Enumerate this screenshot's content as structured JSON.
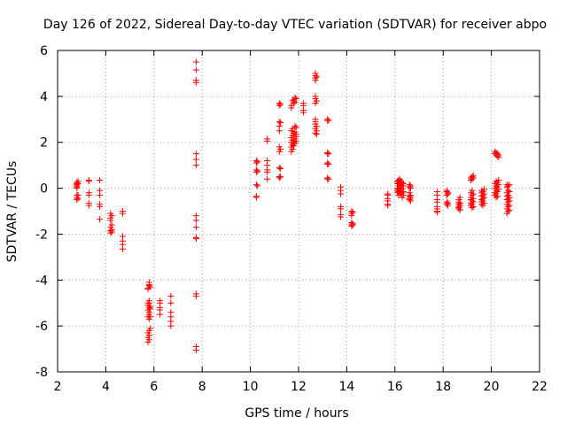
{
  "chart_data": {
    "type": "scatter",
    "title": "Day 126 of 2022, Sidereal Day-to-day VTEC variation (SDTVAR) for receiver abpo",
    "xlabel": "GPS time / hours",
    "ylabel": "SDTVAR / TECUs",
    "xlim": [
      2,
      22
    ],
    "ylim": [
      -8,
      6
    ],
    "xticks": [
      2,
      4,
      6,
      8,
      10,
      12,
      14,
      16,
      18,
      20,
      22
    ],
    "yticks": [
      -8,
      -6,
      -4,
      -2,
      0,
      2,
      4,
      6
    ],
    "grid": true,
    "marker": "plus",
    "color": "#ff0000",
    "series": [
      {
        "name": "SDTVAR",
        "clusters": [
          {
            "x": 2.8,
            "y": [
              0.25,
              0.2,
              0.15,
              0.1,
              0.05,
              0.0,
              -0.3,
              -0.4,
              -0.5
            ]
          },
          {
            "x": 2.85,
            "y": [
              0.3,
              0.2,
              -0.3,
              -0.45
            ]
          },
          {
            "x": 3.3,
            "y": [
              0.35,
              0.3,
              -0.2,
              -0.3,
              -0.65,
              -0.75
            ]
          },
          {
            "x": 3.75,
            "y": [
              0.35,
              -0.1,
              -0.3,
              -0.7,
              -0.8,
              -1.35
            ]
          },
          {
            "x": 4.2,
            "y": [
              -1.1,
              -1.3,
              -1.4,
              -1.7,
              -1.85,
              -1.95
            ]
          },
          {
            "x": 4.25,
            "y": [
              -1.2,
              -1.6,
              -1.8,
              -1.9
            ]
          },
          {
            "x": 4.7,
            "y": [
              -1.0,
              -1.1,
              -2.1,
              -2.3,
              -2.45,
              -2.65
            ]
          },
          {
            "x": 5.75,
            "y": [
              -4.4,
              -4.35,
              -5.0,
              -5.1,
              -5.3,
              -5.6,
              -6.3,
              -6.5,
              -6.7
            ]
          },
          {
            "x": 5.8,
            "y": [
              -4.1,
              -4.2,
              -4.25,
              -4.9,
              -5.0,
              -5.2,
              -5.4,
              -5.5,
              -5.7,
              -6.2,
              -6.4,
              -6.6
            ]
          },
          {
            "x": 5.85,
            "y": [
              -4.3,
              -5.15,
              -5.25,
              -5.6,
              -6.1
            ]
          },
          {
            "x": 6.25,
            "y": [
              -4.9,
              -5.0,
              -5.2,
              -5.3,
              -5.5
            ]
          },
          {
            "x": 6.7,
            "y": [
              -4.7,
              -5.0,
              -5.4,
              -5.6,
              -5.8,
              -6.0
            ]
          },
          {
            "x": 7.75,
            "y": [
              5.5,
              5.15,
              4.7,
              4.6,
              1.5,
              1.25,
              1.0,
              -1.2,
              -1.4,
              -1.7,
              -2.15,
              -2.2,
              -4.6,
              -4.7,
              -6.9,
              -7.05
            ]
          },
          {
            "x": 10.25,
            "y": [
              1.2,
              1.1,
              0.8,
              0.7,
              0.15,
              -0.35,
              -0.4
            ]
          },
          {
            "x": 10.3,
            "y": [
              1.15,
              0.75,
              0.1
            ]
          },
          {
            "x": 10.7,
            "y": [
              2.15,
              2.05,
              1.2,
              1.0,
              0.8,
              0.7,
              0.4
            ]
          },
          {
            "x": 11.2,
            "y": [
              3.7,
              3.6,
              2.9,
              2.7,
              2.5,
              1.8,
              1.6,
              0.9,
              0.5,
              0.45
            ]
          },
          {
            "x": 11.25,
            "y": [
              3.65,
              2.85,
              1.7,
              0.85,
              0.5
            ]
          },
          {
            "x": 11.7,
            "y": [
              3.6,
              3.5,
              2.5,
              2.2,
              2.0,
              1.8,
              1.6
            ]
          },
          {
            "x": 11.75,
            "y": [
              3.8,
              2.6,
              2.3,
              2.1,
              1.9,
              1.7
            ]
          },
          {
            "x": 11.8,
            "y": [
              3.85,
              3.7,
              2.4,
              2.0,
              1.85
            ]
          },
          {
            "x": 11.85,
            "y": [
              3.95,
              3.75,
              2.7,
              2.45,
              2.15,
              1.95
            ]
          },
          {
            "x": 11.9,
            "y": [
              3.9,
              2.65,
              2.35,
              2.25,
              2.05
            ]
          },
          {
            "x": 12.2,
            "y": [
              3.7,
              3.6,
              3.4,
              3.3
            ]
          },
          {
            "x": 12.7,
            "y": [
              5.0,
              4.9,
              4.8,
              4.7,
              4.0,
              3.9,
              3.7,
              3.0,
              2.9,
              2.8,
              2.6,
              2.4
            ]
          },
          {
            "x": 12.75,
            "y": [
              4.85,
              3.8,
              2.7,
              2.5,
              2.35
            ]
          },
          {
            "x": 13.2,
            "y": [
              3.0,
              2.95,
              1.55,
              1.5,
              1.1,
              1.05,
              0.45,
              0.4
            ]
          },
          {
            "x": 13.25,
            "y": [
              2.95,
              1.5,
              1.05,
              0.4
            ]
          },
          {
            "x": 13.75,
            "y": [
              0.05,
              -0.1,
              -0.25,
              -0.8,
              -0.9,
              -1.15,
              -1.25
            ]
          },
          {
            "x": 14.2,
            "y": [
              -1.0,
              -1.1,
              -1.2,
              -1.5,
              -1.6,
              -1.65
            ]
          },
          {
            "x": 14.25,
            "y": [
              -1.05,
              -1.55,
              -1.6
            ]
          },
          {
            "x": 15.7,
            "y": [
              -0.25,
              -0.3,
              -0.45,
              -0.55,
              -0.7,
              -0.75
            ]
          },
          {
            "x": 16.1,
            "y": [
              0.3,
              0.2,
              0.0,
              -0.1,
              -0.2
            ]
          },
          {
            "x": 16.15,
            "y": [
              0.35,
              0.25,
              0.1,
              -0.05,
              -0.15,
              -0.3
            ]
          },
          {
            "x": 16.2,
            "y": [
              0.4,
              0.2,
              0.05,
              -0.1,
              -0.2
            ]
          },
          {
            "x": 16.25,
            "y": [
              0.3,
              0.15,
              0.0,
              -0.25
            ]
          },
          {
            "x": 16.3,
            "y": [
              0.25,
              0.1,
              -0.05,
              -0.2,
              -0.4
            ]
          },
          {
            "x": 16.35,
            "y": [
              0.2,
              0.1,
              -0.15,
              -0.3
            ]
          },
          {
            "x": 16.6,
            "y": [
              0.15,
              0.05,
              -0.2,
              -0.35,
              -0.45,
              -0.5
            ]
          },
          {
            "x": 16.65,
            "y": [
              0.1,
              0.0,
              -0.3,
              -0.4,
              -0.55
            ]
          },
          {
            "x": 17.75,
            "y": [
              -0.15,
              -0.3,
              -0.5,
              -0.6,
              -0.8,
              -0.9,
              -1.0,
              -1.05
            ]
          },
          {
            "x": 18.15,
            "y": [
              -0.1,
              -0.15,
              -0.3,
              -0.6,
              -0.7
            ]
          },
          {
            "x": 18.2,
            "y": [
              -0.2,
              -0.25,
              -0.65,
              -0.75
            ]
          },
          {
            "x": 18.65,
            "y": [
              -0.5,
              -0.6,
              -0.7,
              -0.8,
              -0.85,
              -0.9
            ]
          },
          {
            "x": 18.7,
            "y": [
              -0.4,
              -0.65,
              -0.75,
              -0.95
            ]
          },
          {
            "x": 19.15,
            "y": [
              0.45,
              0.35,
              -0.2,
              -0.4,
              -0.5,
              -0.65,
              -0.75
            ]
          },
          {
            "x": 19.2,
            "y": [
              0.5,
              0.4,
              -0.1,
              -0.3,
              -0.55,
              -0.7,
              -0.85
            ]
          },
          {
            "x": 19.25,
            "y": [
              0.55,
              0.45,
              -0.25,
              -0.45,
              -0.6,
              -0.8
            ]
          },
          {
            "x": 19.6,
            "y": [
              -0.1,
              -0.2,
              -0.35,
              -0.5,
              -0.6,
              -0.7
            ]
          },
          {
            "x": 19.65,
            "y": [
              -0.15,
              -0.3,
              -0.45,
              -0.55,
              -0.75
            ]
          },
          {
            "x": 19.7,
            "y": [
              -0.05,
              -0.25,
              -0.4,
              -0.65
            ]
          },
          {
            "x": 20.15,
            "y": [
              1.6,
              1.5,
              0.2,
              0.0,
              -0.2,
              -0.3
            ]
          },
          {
            "x": 20.2,
            "y": [
              1.55,
              1.45,
              0.3,
              0.1,
              -0.1,
              -0.25,
              -0.4
            ]
          },
          {
            "x": 20.25,
            "y": [
              1.5,
              1.4,
              0.25,
              0.05,
              -0.15,
              -0.35
            ]
          },
          {
            "x": 20.3,
            "y": [
              1.45,
              1.35,
              0.35,
              0.15,
              -0.05
            ]
          },
          {
            "x": 20.65,
            "y": [
              0.15,
              0.05,
              -0.2,
              -0.35,
              -0.5,
              -0.7,
              -0.9,
              -1.1
            ]
          },
          {
            "x": 20.7,
            "y": [
              0.1,
              -0.1,
              -0.3,
              -0.45,
              -0.6,
              -0.8,
              -1.0
            ]
          },
          {
            "x": 20.75,
            "y": [
              0.15,
              -0.15,
              -0.4,
              -0.55,
              -0.75,
              -0.95
            ]
          }
        ]
      }
    ]
  }
}
